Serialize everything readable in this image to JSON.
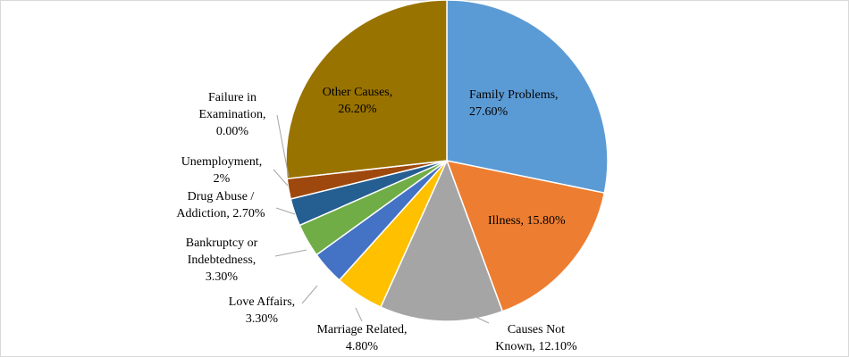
{
  "chart_data": {
    "type": "pie",
    "title": "",
    "slices": [
      {
        "label_lines": [
          "Family Problems,",
          "27.60%"
        ],
        "category": "Family Problems",
        "value": 27.6,
        "color": "#5b9bd5"
      },
      {
        "label_lines": [
          "Illness, 15.80%"
        ],
        "category": "Illness",
        "value": 15.8,
        "color": "#ed7d31"
      },
      {
        "label_lines": [
          "Causes Not",
          "Known, 12.10%"
        ],
        "category": "Causes Not Known",
        "value": 12.1,
        "color": "#a5a5a5"
      },
      {
        "label_lines": [
          "Marriage Related,",
          "4.80%"
        ],
        "category": "Marriage Related",
        "value": 4.8,
        "color": "#ffc000"
      },
      {
        "label_lines": [
          "Love Affairs,",
          "3.30%"
        ],
        "category": "Love Affairs",
        "value": 3.3,
        "color": "#4472c4"
      },
      {
        "label_lines": [
          "Bankruptcy or",
          "Indebtedness,",
          "3.30%"
        ],
        "category": "Bankruptcy or Indebtedness",
        "value": 3.3,
        "color": "#70ad47"
      },
      {
        "label_lines": [
          "Drug Abuse /",
          "Addiction, 2.70%"
        ],
        "category": "Drug Abuse / Addiction",
        "value": 2.7,
        "color": "#255e91"
      },
      {
        "label_lines": [
          "Unemployment,",
          "2%"
        ],
        "category": "Unemployment",
        "value": 2,
        "color": "#9e480e"
      },
      {
        "label_lines": [
          "Failure in",
          "Examination,",
          "0.00%"
        ],
        "category": "Failure in Examination",
        "value": 0,
        "color": "#636363"
      },
      {
        "label_lines": [
          "Other Causes,",
          "26.20%"
        ],
        "category": "Other Causes",
        "value": 26.2,
        "color": "#997300"
      }
    ]
  }
}
